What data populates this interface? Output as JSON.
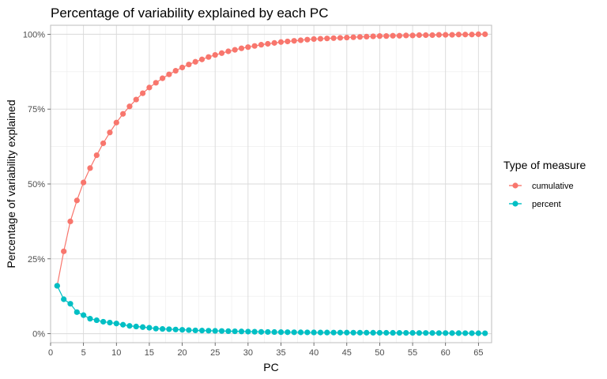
{
  "chart_data": {
    "type": "line",
    "title": "Percentage of variability explained by each PC",
    "xlabel": "PC",
    "ylabel": "Percentage of variability explained",
    "xlim": [
      0,
      67
    ],
    "ylim": [
      -0.03,
      1.03
    ],
    "x_ticks": [
      0,
      5,
      10,
      15,
      20,
      25,
      30,
      35,
      40,
      45,
      50,
      55,
      60,
      65
    ],
    "y_ticks": [
      0,
      0.25,
      0.5,
      0.75,
      1.0
    ],
    "y_tick_labels": [
      "0%",
      "25%",
      "50%",
      "75%",
      "100%"
    ],
    "grid": true,
    "legend": {
      "title": "Type of measure",
      "position": "right"
    },
    "x": [
      1,
      2,
      3,
      4,
      5,
      6,
      7,
      8,
      9,
      10,
      11,
      12,
      13,
      14,
      15,
      16,
      17,
      18,
      19,
      20,
      21,
      22,
      23,
      24,
      25,
      26,
      27,
      28,
      29,
      30,
      31,
      32,
      33,
      34,
      35,
      36,
      37,
      38,
      39,
      40,
      41,
      42,
      43,
      44,
      45,
      46,
      47,
      48,
      49,
      50,
      51,
      52,
      53,
      54,
      55,
      56,
      57,
      58,
      59,
      60,
      61,
      62,
      63,
      64,
      65,
      66
    ],
    "series": [
      {
        "name": "cumulative",
        "color": "#F8766D",
        "values": [
          0.16,
          0.275,
          0.375,
          0.445,
          0.505,
          0.553,
          0.596,
          0.636,
          0.672,
          0.705,
          0.734,
          0.759,
          0.782,
          0.803,
          0.822,
          0.838,
          0.853,
          0.866,
          0.878,
          0.889,
          0.899,
          0.908,
          0.916,
          0.924,
          0.931,
          0.937,
          0.943,
          0.948,
          0.953,
          0.957,
          0.961,
          0.965,
          0.968,
          0.971,
          0.974,
          0.976,
          0.978,
          0.98,
          0.982,
          0.984,
          0.985,
          0.986,
          0.987,
          0.988,
          0.989,
          0.99,
          0.991,
          0.992,
          0.993,
          0.994,
          0.994,
          0.995,
          0.995,
          0.996,
          0.996,
          0.997,
          0.997,
          0.997,
          0.998,
          0.998,
          0.998,
          0.999,
          0.999,
          0.999,
          1.0,
          1.0
        ]
      },
      {
        "name": "percent",
        "color": "#00BFC4",
        "values": [
          0.16,
          0.115,
          0.1,
          0.072,
          0.062,
          0.05,
          0.045,
          0.04,
          0.037,
          0.034,
          0.03,
          0.026,
          0.024,
          0.022,
          0.02,
          0.017,
          0.016,
          0.015,
          0.014,
          0.013,
          0.012,
          0.011,
          0.0105,
          0.01,
          0.0095,
          0.009,
          0.0085,
          0.008,
          0.0075,
          0.007,
          0.0065,
          0.006,
          0.0058,
          0.0055,
          0.0052,
          0.005,
          0.0048,
          0.0046,
          0.0044,
          0.0042,
          0.004,
          0.0039,
          0.0038,
          0.0037,
          0.0036,
          0.0035,
          0.0034,
          0.0033,
          0.0032,
          0.0031,
          0.003,
          0.0029,
          0.0028,
          0.0027,
          0.0026,
          0.0025,
          0.0024,
          0.0023,
          0.0022,
          0.0021,
          0.002,
          0.0019,
          0.0018,
          0.0017,
          0.0016,
          0.0015
        ]
      }
    ]
  }
}
